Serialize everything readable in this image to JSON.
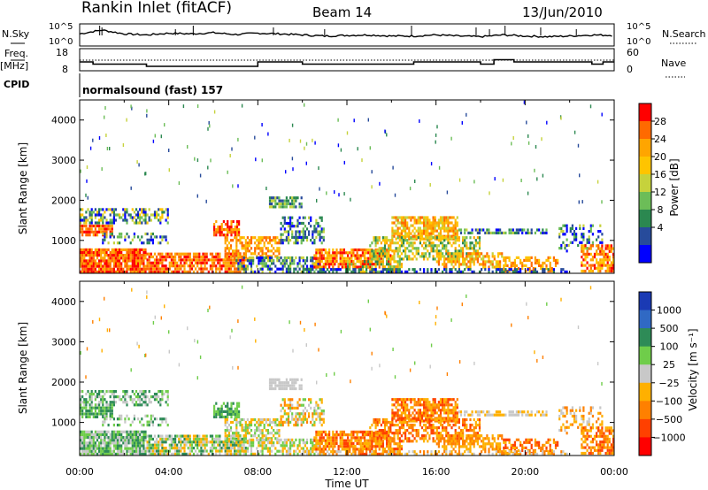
{
  "header": {
    "station": "Rankin Inlet (fitACF)",
    "beam": "Beam 14",
    "date": "13/Jun/2010"
  },
  "left_labels": {
    "nsky": "N.Sky",
    "freq_line1": "Freq.",
    "freq_line2": "[MHz]",
    "cpid": "CPID"
  },
  "right_labels": {
    "nsearch": "N.Search",
    "nave": "Nave"
  },
  "cpid_text": "normalsound (fast) 157",
  "chart_data": [
    {
      "type": "line",
      "name": "noise",
      "y_left_ticks": [
        "10^5",
        "10^0"
      ],
      "y_right_ticks": [
        "10^5",
        "10^0"
      ],
      "series": [
        {
          "name": "N.Sky",
          "x_hours": [
            0,
            1,
            2,
            3,
            4,
            5,
            6,
            7,
            8,
            9,
            10,
            11,
            12,
            13,
            14,
            15,
            16,
            17,
            18,
            19,
            20,
            21,
            22,
            23,
            24
          ],
          "values": [
            0.55,
            0.72,
            0.55,
            0.5,
            0.58,
            0.55,
            0.6,
            0.52,
            0.58,
            0.55,
            0.5,
            0.45,
            0.48,
            0.5,
            0.45,
            0.45,
            0.5,
            0.45,
            0.42,
            0.5,
            0.45,
            0.42,
            0.45,
            0.5,
            0.48
          ]
        },
        {
          "name": "N.Search",
          "values": [],
          "style": "dotted"
        }
      ]
    },
    {
      "type": "line",
      "name": "frequency",
      "y_left_ticks": [
        "18",
        "8"
      ],
      "y_right_ticks": [
        "60",
        "0"
      ],
      "series": [
        {
          "name": "Freq.",
          "x_hours": [
            0,
            0.6,
            0.6,
            3,
            3,
            8,
            8,
            10,
            10,
            15,
            15,
            18,
            18,
            18.6,
            18.6,
            19.5,
            19.5,
            23,
            23,
            23.5,
            23.5,
            24
          ],
          "values": [
            12,
            12,
            11,
            11,
            10,
            10,
            12,
            12,
            11,
            11,
            12,
            12,
            11,
            11,
            13,
            13,
            12,
            12,
            11,
            11,
            12,
            12
          ]
        },
        {
          "name": "Nave",
          "values": [],
          "style": "dotted"
        }
      ]
    },
    {
      "type": "heatmap",
      "name": "power",
      "xlabel": "Time UT",
      "ylabel": "Slant Range [km]",
      "x_ticks": [
        "00:00",
        "04:00",
        "08:00",
        "12:00",
        "16:00",
        "20:00",
        "00:00"
      ],
      "y_ticks": [
        "1000",
        "2000",
        "3000",
        "4000"
      ],
      "y_values": [
        1000,
        2000,
        3000,
        4000
      ],
      "ylim": [
        180,
        4500
      ],
      "colorbar_label": "Power [dB]",
      "colorbar_ticks": [
        "28",
        "24",
        "20",
        "16",
        "12",
        "8",
        "4"
      ],
      "colorbar_colors": [
        "#ff0000",
        "#ff6a00",
        "#ffa500",
        "#ffc400",
        "#c6d23c",
        "#6cbd58",
        "#2b8850",
        "#274b9b",
        "#0000ff"
      ]
    },
    {
      "type": "heatmap",
      "name": "velocity",
      "xlabel": "Time UT",
      "ylabel": "Slant Range [km]",
      "x_ticks": [
        "00:00",
        "04:00",
        "08:00",
        "12:00",
        "16:00",
        "20:00",
        "00:00"
      ],
      "y_ticks": [
        "1000",
        "2000",
        "3000",
        "4000"
      ],
      "y_values": [
        1000,
        2000,
        3000,
        4000
      ],
      "ylim": [
        180,
        4500
      ],
      "colorbar_label": "Velocity [m s⁻¹]",
      "colorbar_ticks": [
        "1000",
        "500",
        "100",
        "25",
        "−25",
        "−100",
        "−500",
        "−1000"
      ],
      "colorbar_colors": [
        "#1a3ab4",
        "#3069c4",
        "#2e8b57",
        "#6fcd4a",
        "#c8c8c8",
        "#ffb000",
        "#ff8000",
        "#ff4000",
        "#ff0000"
      ]
    }
  ]
}
